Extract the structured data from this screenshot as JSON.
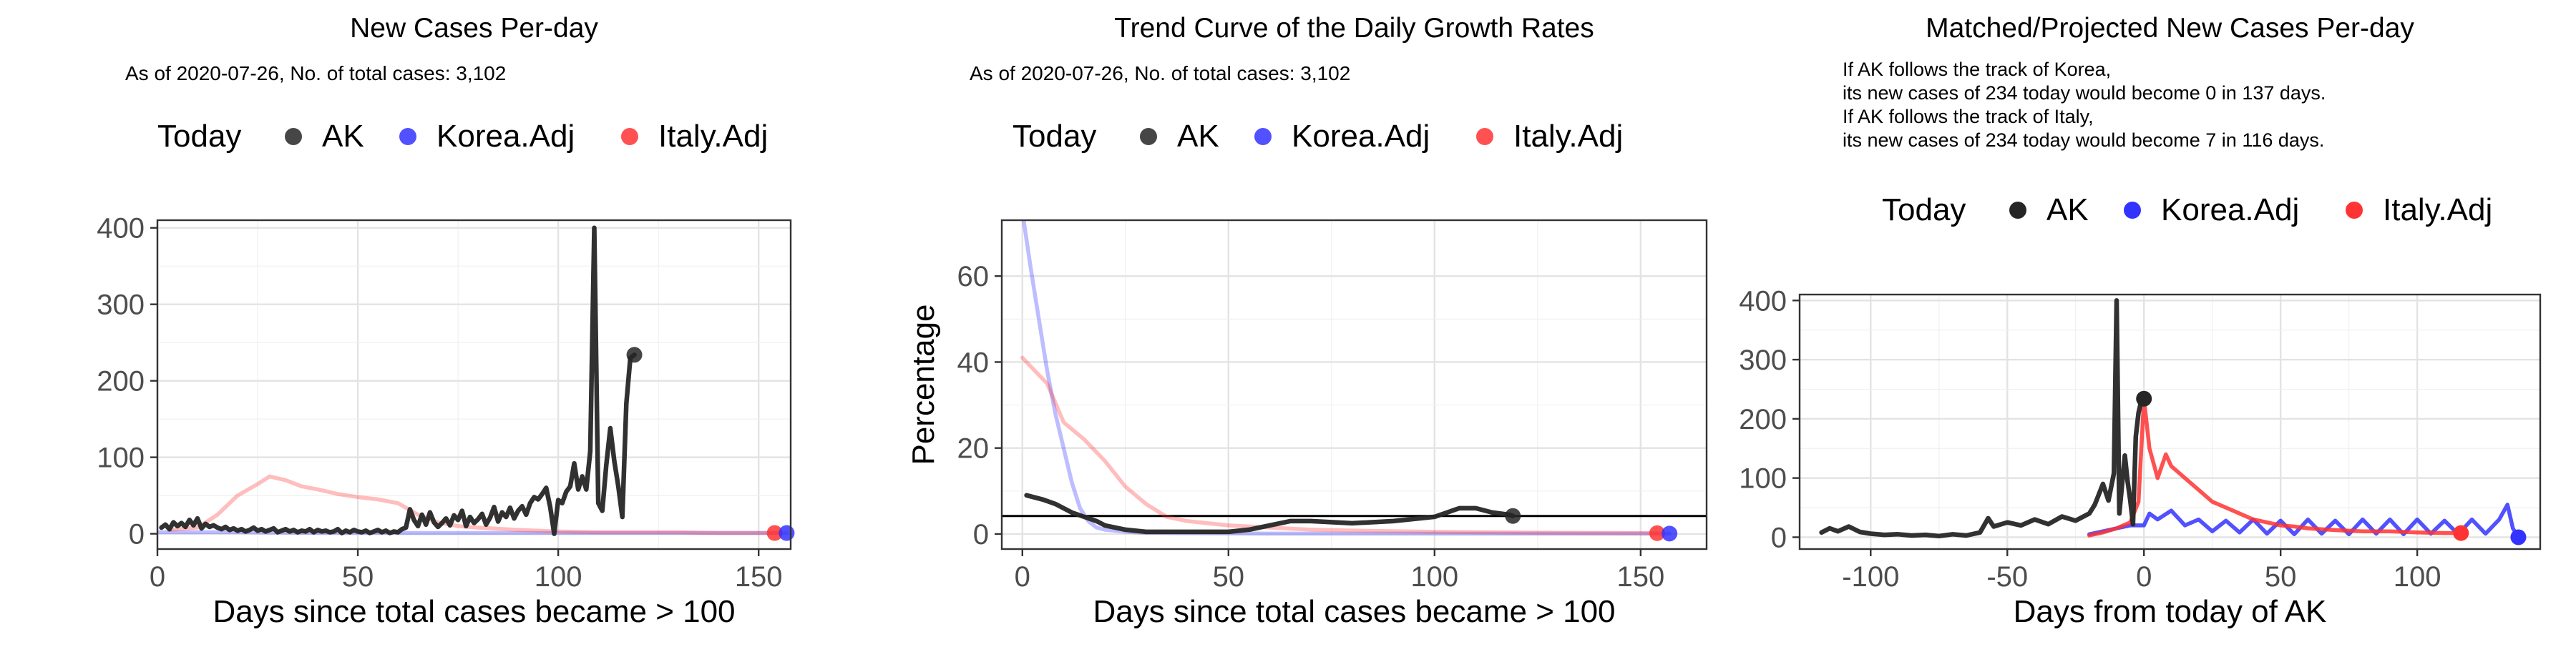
{
  "chart_data": [
    {
      "type": "line",
      "title": "New Cases Per-day",
      "subtitle": "As of 2020-07-26, No. of total cases: 3,102",
      "xlabel": "Days since total cases became > 100",
      "ylabel": "",
      "xlim": [
        0,
        158
      ],
      "ylim": [
        -20,
        410
      ],
      "xticks": [
        0,
        50,
        100,
        150
      ],
      "yticks": [
        0,
        100,
        200,
        300,
        400
      ],
      "grid": true,
      "legend": {
        "position": "top",
        "title": "Today",
        "items": [
          "AK",
          "Korea.Adj",
          "Italy.Adj"
        ]
      },
      "series": [
        {
          "name": "AK",
          "color": "#262626",
          "x": [
            1,
            2,
            3,
            4,
            5,
            6,
            7,
            8,
            9,
            10,
            11,
            12,
            13,
            14,
            15,
            16,
            17,
            18,
            19,
            20,
            21,
            22,
            23,
            24,
            25,
            26,
            27,
            28,
            29,
            30,
            31,
            32,
            33,
            34,
            35,
            36,
            37,
            38,
            39,
            40,
            41,
            42,
            43,
            44,
            45,
            46,
            47,
            48,
            49,
            50,
            51,
            52,
            53,
            54,
            55,
            56,
            57,
            58,
            59,
            60,
            61,
            62,
            63,
            64,
            65,
            66,
            67,
            68,
            69,
            70,
            71,
            72,
            73,
            74,
            75,
            76,
            77,
            78,
            79,
            80,
            81,
            82,
            83,
            84,
            85,
            86,
            87,
            88,
            89,
            90,
            91,
            92,
            93,
            94,
            95,
            96,
            97,
            98,
            99,
            100,
            101,
            102,
            103,
            104,
            105,
            106,
            107,
            108,
            109,
            110,
            111,
            112,
            113,
            114,
            115,
            116,
            117,
            118,
            119
          ],
          "y": [
            8,
            12,
            6,
            15,
            10,
            14,
            9,
            18,
            11,
            20,
            7,
            13,
            9,
            11,
            8,
            6,
            9,
            5,
            7,
            4,
            6,
            3,
            5,
            8,
            4,
            6,
            3,
            5,
            7,
            2,
            4,
            6,
            3,
            5,
            2,
            4,
            3,
            6,
            2,
            5,
            3,
            4,
            2,
            3,
            6,
            1,
            4,
            2,
            5,
            3,
            2,
            4,
            1,
            3,
            5,
            2,
            4,
            1,
            3,
            2,
            6,
            8,
            32,
            18,
            10,
            25,
            12,
            28,
            15,
            9,
            14,
            20,
            11,
            24,
            18,
            30,
            10,
            22,
            14,
            19,
            26,
            12,
            21,
            35,
            16,
            28,
            22,
            34,
            20,
            30,
            36,
            25,
            40,
            48,
            45,
            52,
            60,
            35,
            0,
            44,
            40,
            55,
            62,
            92,
            58,
            75,
            58,
            108,
            400,
            40,
            30,
            90,
            138,
            95,
            62,
            22,
            170,
            230,
            234
          ]
        },
        {
          "name": "Korea.Adj",
          "color": "#3333ff",
          "x": [
            0,
            20,
            40,
            60,
            80,
            100,
            120,
            140,
            157
          ],
          "y": [
            2,
            2,
            1,
            1,
            1,
            1,
            1,
            1,
            1
          ]
        },
        {
          "name": "Italy.Adj",
          "color": "#ff3333",
          "x": [
            3,
            10,
            15,
            20,
            25,
            28,
            32,
            36,
            40,
            45,
            50,
            55,
            60,
            65,
            70,
            75,
            80,
            90,
            100,
            110,
            120,
            130,
            140,
            150,
            155
          ],
          "y": [
            5,
            8,
            25,
            50,
            65,
            75,
            70,
            62,
            58,
            52,
            48,
            45,
            40,
            25,
            15,
            10,
            8,
            5,
            3,
            2,
            2,
            2,
            1,
            1,
            1
          ]
        }
      ],
      "points": [
        {
          "series": "AK",
          "x": 119,
          "y": 234
        },
        {
          "series": "Italy.Adj",
          "x": 154,
          "y": 1
        },
        {
          "series": "Korea.Adj",
          "x": 157,
          "y": 1
        }
      ]
    },
    {
      "type": "line",
      "title": "Trend Curve of the Daily Growth Rates",
      "subtitle": "As of 2020-07-26, No. of total cases: 3,102",
      "xlabel": "Days since total cases became > 100",
      "ylabel": "Percentage",
      "xlim": [
        -5,
        166
      ],
      "ylim": [
        -3.5,
        73
      ],
      "xticks": [
        0,
        50,
        100,
        150
      ],
      "yticks": [
        0,
        20,
        40,
        60
      ],
      "hline": 4.2,
      "grid": true,
      "legend": {
        "position": "top",
        "title": "Today",
        "items": [
          "AK",
          "Korea.Adj",
          "Italy.Adj"
        ]
      },
      "series": [
        {
          "name": "AK",
          "color": "#262626",
          "x": [
            1,
            3,
            5,
            8,
            10,
            12,
            15,
            18,
            20,
            25,
            30,
            40,
            50,
            55,
            60,
            65,
            70,
            80,
            90,
            100,
            103,
            106,
            110,
            114,
            118,
            119
          ],
          "y": [
            9,
            8.5,
            8,
            7,
            6,
            5,
            4,
            3,
            2,
            1,
            0.5,
            0.5,
            0.5,
            1,
            2,
            3,
            3,
            2.5,
            3,
            4,
            5,
            6,
            6,
            5,
            4.5,
            4.2
          ]
        },
        {
          "name": "Korea.Adj",
          "color": "#3333ff",
          "x": [
            0,
            2,
            4,
            6,
            8,
            10,
            12,
            14,
            16,
            18,
            20,
            25,
            30,
            40,
            60,
            100,
            157
          ],
          "y": [
            75,
            62,
            50,
            38,
            28,
            20,
            12,
            6,
            3,
            1.5,
            1,
            0.5,
            0.3,
            0.2,
            0.1,
            0.1,
            0.1
          ]
        },
        {
          "name": "Italy.Adj",
          "color": "#ff3333",
          "x": [
            0,
            3,
            6,
            10,
            15,
            20,
            25,
            30,
            35,
            40,
            50,
            60,
            70,
            80,
            100,
            130,
            154
          ],
          "y": [
            41,
            38,
            35,
            26,
            22,
            17,
            11,
            7,
            4,
            3,
            2,
            1.5,
            1,
            0.8,
            0.5,
            0.3,
            0.2
          ]
        }
      ],
      "points": [
        {
          "series": "AK",
          "x": 119,
          "y": 4.2
        },
        {
          "series": "Italy.Adj",
          "x": 154,
          "y": 0.2
        },
        {
          "series": "Korea.Adj",
          "x": 157,
          "y": 0.1
        }
      ]
    },
    {
      "type": "line",
      "title": "Matched/Projected New Cases Per-day",
      "notes": [
        "If AK follows the track of Korea,",
        "its new cases of 234 today would become 0 in 137 days.",
        "If AK follows the track of Italy,",
        "its new cases of 234 today would become 7 in 116 days."
      ],
      "xlabel": "Days from today of AK",
      "ylabel": "",
      "xlim": [
        -126,
        145
      ],
      "ylim": [
        -20,
        410
      ],
      "xticks": [
        -100,
        -50,
        0,
        50,
        100
      ],
      "yticks": [
        0,
        100,
        200,
        300,
        400
      ],
      "grid": true,
      "legend": {
        "position": "top",
        "title": "Today",
        "items": [
          "AK",
          "Korea.Adj",
          "Italy.Adj"
        ]
      },
      "series": [
        {
          "name": "AK",
          "color": "#262626",
          "x": [
            -118,
            -115,
            -112,
            -108,
            -104,
            -100,
            -95,
            -90,
            -85,
            -80,
            -75,
            -70,
            -65,
            -60,
            -57,
            -55,
            -50,
            -45,
            -40,
            -35,
            -30,
            -25,
            -20,
            -18,
            -15,
            -13,
            -11,
            -10,
            -9,
            -8,
            -7,
            -6,
            -5,
            -4,
            -3,
            -2,
            -1,
            0
          ],
          "y": [
            8,
            15,
            10,
            18,
            9,
            6,
            4,
            5,
            3,
            4,
            2,
            5,
            3,
            8,
            32,
            18,
            25,
            20,
            30,
            22,
            35,
            28,
            40,
            55,
            90,
            62,
            108,
            400,
            40,
            90,
            138,
            95,
            62,
            22,
            170,
            210,
            230,
            234
          ]
        },
        {
          "name": "Korea.Adj",
          "color": "#3333ff",
          "x": [
            -20,
            -15,
            -10,
            -5,
            0,
            2,
            5,
            10,
            15,
            20,
            25,
            30,
            35,
            40,
            45,
            50,
            55,
            60,
            65,
            70,
            75,
            80,
            85,
            90,
            95,
            100,
            105,
            110,
            115,
            120,
            125,
            130,
            133,
            135,
            137
          ],
          "y": [
            5,
            10,
            15,
            20,
            20,
            40,
            30,
            45,
            20,
            30,
            10,
            28,
            8,
            30,
            6,
            28,
            5,
            30,
            6,
            28,
            5,
            30,
            6,
            30,
            5,
            30,
            6,
            28,
            5,
            30,
            6,
            30,
            55,
            15,
            0
          ]
        },
        {
          "name": "Italy.Adj",
          "color": "#ff3333",
          "x": [
            -20,
            -15,
            -10,
            -5,
            -2,
            0,
            2,
            5,
            8,
            10,
            15,
            20,
            25,
            30,
            35,
            40,
            45,
            50,
            55,
            60,
            70,
            80,
            90,
            100,
            110,
            116
          ],
          "y": [
            3,
            8,
            15,
            25,
            60,
            234,
            150,
            100,
            140,
            120,
            100,
            80,
            60,
            50,
            40,
            30,
            25,
            20,
            18,
            15,
            12,
            10,
            10,
            8,
            7,
            7
          ]
        }
      ],
      "points": [
        {
          "series": "AK",
          "x": 0,
          "y": 234
        },
        {
          "series": "Italy.Adj",
          "x": 116,
          "y": 7
        },
        {
          "series": "Korea.Adj",
          "x": 137,
          "y": 0
        }
      ]
    }
  ]
}
